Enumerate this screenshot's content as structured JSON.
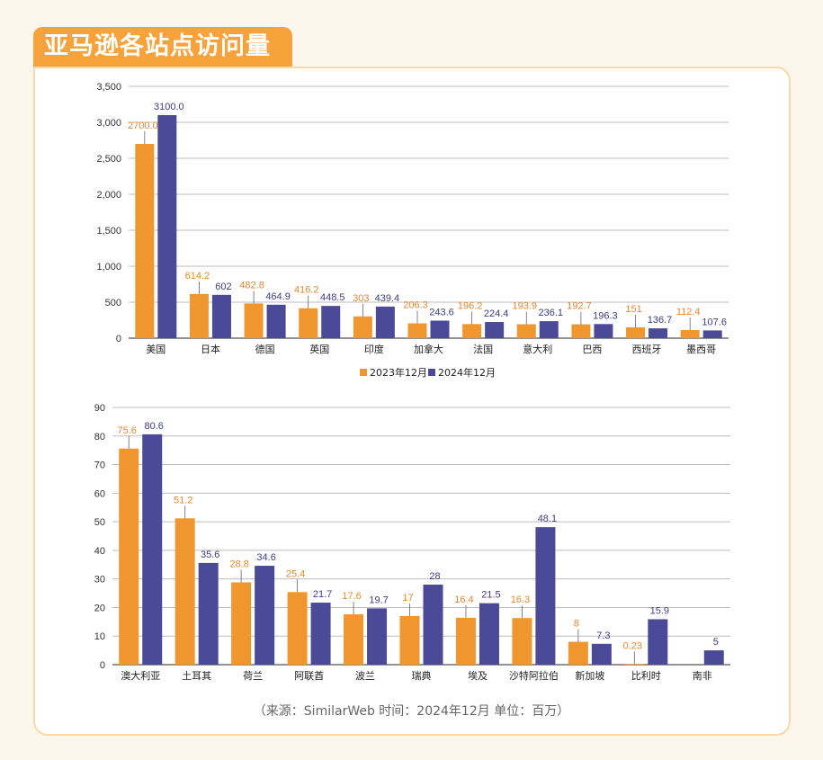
{
  "title": "亚马逊各站点访问量",
  "source_note": "（来源：SimilarWeb    时间：2024年12月    单位：百万）",
  "colors": {
    "series_2023": "#f0962e",
    "series_2024": "#4b4a98",
    "accent": "#f7a23b"
  },
  "chart_data": [
    {
      "type": "bar",
      "categories": [
        "美国",
        "日本",
        "德国",
        "英国",
        "印度",
        "加拿大",
        "法国",
        "意大利",
        "巴西",
        "西班牙",
        "墨西哥"
      ],
      "series": [
        {
          "name": "2023年12月",
          "values": [
            2700.0,
            614.2,
            482.8,
            416.2,
            303,
            206.3,
            196.2,
            193.9,
            192.7,
            151,
            112.4
          ],
          "labels": [
            "2700.0",
            "614.2",
            "482.8",
            "416.2",
            "303",
            "206.3",
            "196.2",
            "193.9",
            "192.7",
            "151",
            "112.4"
          ]
        },
        {
          "name": "2024年12月",
          "values": [
            3100.0,
            602,
            464.9,
            448.5,
            439.4,
            243.6,
            224.4,
            236.1,
            196.3,
            136.7,
            107.6
          ],
          "labels": [
            "3100.0",
            "602",
            "464.9",
            "448.5",
            "439.4",
            "243.6",
            "224.4",
            "236.1",
            "196.3",
            "136.7",
            "107.6"
          ]
        }
      ],
      "ylim": [
        0,
        3500
      ],
      "yticks": [
        0,
        500,
        1000,
        1500,
        2000,
        2500,
        3000,
        3500
      ],
      "ytick_labels": [
        "0",
        "500",
        "1,000",
        "1,500",
        "2,000",
        "2,500",
        "3,000",
        "3,500"
      ],
      "grid": true,
      "legend": "bottom"
    },
    {
      "type": "bar",
      "categories": [
        "澳大利亚",
        "土耳其",
        "荷兰",
        "阿联酋",
        "波兰",
        "瑞典",
        "埃及",
        "沙特阿拉伯",
        "新加坡",
        "比利时",
        "南非"
      ],
      "series": [
        {
          "name": "2023年12月",
          "values": [
            75.6,
            51.2,
            28.8,
            25.4,
            17.6,
            17,
            16.4,
            16.3,
            8,
            0.23,
            null
          ],
          "labels": [
            "75.6",
            "51.2",
            "28.8",
            "25.4",
            "17.6",
            "17",
            "16.4",
            "16.3",
            "8",
            "0.23",
            ""
          ]
        },
        {
          "name": "2024年12月",
          "values": [
            80.6,
            35.6,
            34.6,
            21.7,
            19.7,
            28,
            21.5,
            48.1,
            7.3,
            15.9,
            5
          ],
          "labels": [
            "80.6",
            "35.6",
            "34.6",
            "21.7",
            "19.7",
            "28",
            "21.5",
            "48.1",
            "7.3",
            "15.9",
            "5"
          ]
        }
      ],
      "ylim": [
        0,
        90
      ],
      "yticks": [
        0,
        10,
        20,
        30,
        40,
        50,
        60,
        70,
        80,
        90
      ],
      "ytick_labels": [
        "0",
        "10",
        "20",
        "30",
        "40",
        "50",
        "60",
        "70",
        "80",
        "90"
      ],
      "grid": true
    }
  ]
}
